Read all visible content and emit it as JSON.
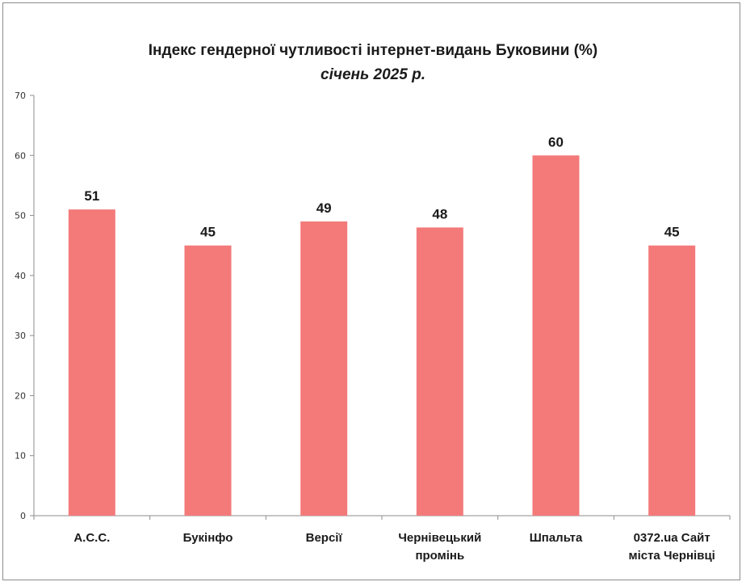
{
  "chart_data": {
    "type": "bar",
    "title": "Індекс гендерної чутливості інтернет-видань Буковини (%)",
    "subtitle": "січень 2025 р.",
    "categories": [
      [
        "А.С.С."
      ],
      [
        "Букінфо"
      ],
      [
        "Версії"
      ],
      [
        "Чернівецький",
        "промінь"
      ],
      [
        "Шпальта"
      ],
      [
        "0372.ua Сайт",
        "міста Чернівці"
      ]
    ],
    "values": [
      51,
      45,
      49,
      48,
      60,
      45
    ],
    "data_labels": [
      "51",
      "45",
      "49",
      "48",
      "60",
      "45"
    ],
    "ylim": [
      0,
      70
    ],
    "yticks": [
      "0",
      "10",
      "20",
      "30",
      "40",
      "50",
      "60",
      "70"
    ],
    "xlabel": "",
    "ylabel": "",
    "grid": false,
    "legend": "none",
    "bar_color": "#f47a7a"
  }
}
